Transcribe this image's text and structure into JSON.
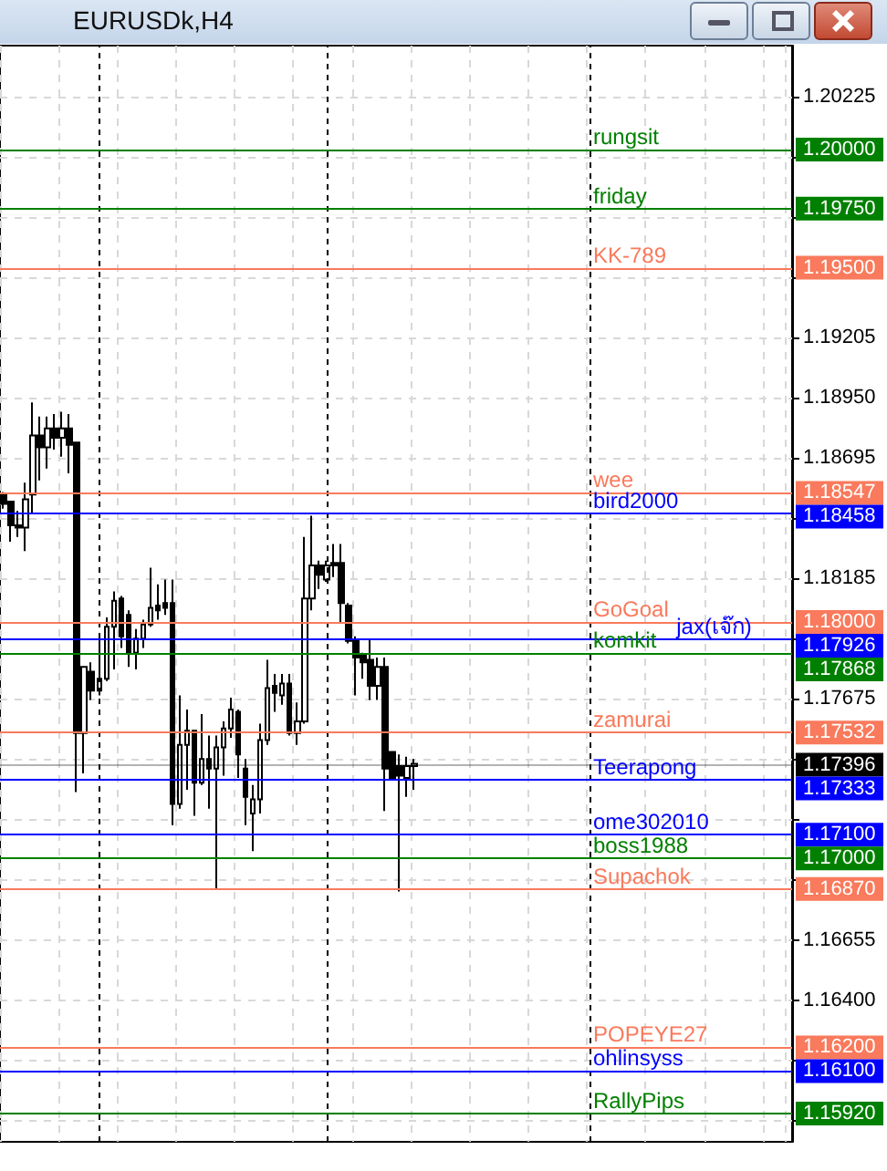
{
  "chart_data": {
    "type": "candlestick",
    "title": "EURUSDk,H4",
    "categories": [
      null,
      null,
      null,
      null,
      null,
      null,
      null,
      null,
      null,
      null,
      null,
      null,
      null,
      null,
      null,
      null,
      null,
      null,
      null,
      null,
      null,
      null,
      null,
      null,
      null,
      null,
      null,
      null,
      null,
      null,
      null,
      null,
      null,
      null,
      null,
      null,
      null,
      null,
      null,
      null,
      null,
      null,
      null,
      null,
      null,
      null,
      null,
      null,
      null,
      null,
      null,
      null,
      null,
      null,
      null,
      null,
      null,
      null,
      null,
      null,
      null,
      null,
      null,
      null,
      null,
      null,
      null,
      null,
      null,
      null,
      null,
      null,
      null,
      null,
      null,
      null,
      null,
      null,
      null,
      null,
      null,
      null,
      null,
      null,
      null,
      null,
      null,
      null,
      null,
      null,
      null,
      null,
      null,
      null,
      null,
      null,
      null,
      null,
      null,
      null,
      null,
      null,
      null,
      null,
      null,
      null,
      null,
      null
    ],
    "ohlc": [
      [
        1.1854,
        1.1855,
        1.1848,
        1.185
      ],
      [
        1.1851,
        1.1851,
        1.1834,
        1.1841
      ],
      [
        1.1841,
        1.1847,
        1.1836,
        1.184
      ],
      [
        1.184,
        1.1859,
        1.183,
        1.1852
      ],
      [
        1.1854,
        1.1893,
        1.1846,
        1.1879
      ],
      [
        1.1879,
        1.1887,
        1.186,
        1.1874
      ],
      [
        1.1874,
        1.1887,
        1.1865,
        1.1882
      ],
      [
        1.1882,
        1.1888,
        1.1873,
        1.1878
      ],
      [
        1.1878,
        1.1889,
        1.187,
        1.1882
      ],
      [
        1.1882,
        1.1888,
        1.1863,
        1.1875
      ],
      [
        1.1876,
        1.1876,
        1.1728,
        1.1753
      ],
      [
        1.1753,
        1.1781,
        1.1736,
        1.1781
      ],
      [
        1.1779,
        1.1783,
        1.1767,
        1.1771
      ],
      [
        1.1771,
        1.1794,
        1.1769,
        1.1776
      ],
      [
        1.1776,
        1.1802,
        1.1775,
        1.1798
      ],
      [
        1.1798,
        1.1813,
        1.178,
        1.1809
      ],
      [
        1.181,
        1.1811,
        1.1789,
        1.1794
      ],
      [
        1.1803,
        1.1805,
        1.1781,
        1.1787
      ],
      [
        1.1787,
        1.1797,
        1.178,
        1.1793
      ],
      [
        1.1793,
        1.1801,
        1.1789,
        1.1799
      ],
      [
        1.1799,
        1.1823,
        1.1798,
        1.1806
      ],
      [
        1.1807,
        1.1816,
        1.1801,
        1.1805
      ],
      [
        1.1808,
        1.1818,
        1.1803,
        1.1806
      ],
      [
        1.1808,
        1.1818,
        1.1714,
        1.1723
      ],
      [
        1.1723,
        1.1769,
        1.1721,
        1.1748
      ],
      [
        1.1748,
        1.1763,
        1.1729,
        1.1754
      ],
      [
        1.1754,
        1.1754,
        1.1718,
        1.1732
      ],
      [
        1.1732,
        1.1761,
        1.1731,
        1.1742
      ],
      [
        1.1742,
        1.1752,
        1.1721,
        1.1738
      ],
      [
        1.1738,
        1.1752,
        1.1687,
        1.1747
      ],
      [
        1.1747,
        1.1758,
        1.1735,
        1.1755
      ],
      [
        1.1755,
        1.1768,
        1.1751,
        1.1763
      ],
      [
        1.1762,
        1.1763,
        1.1734,
        1.1744
      ],
      [
        1.1738,
        1.1742,
        1.1714,
        1.1726
      ],
      [
        1.1719,
        1.1731,
        1.1703,
        1.1725
      ],
      [
        1.1725,
        1.1757,
        1.1719,
        1.175
      ],
      [
        1.175,
        1.1784,
        1.1748,
        1.1772
      ],
      [
        1.1773,
        1.1778,
        1.1762,
        1.177
      ],
      [
        1.1769,
        1.1778,
        1.1765,
        1.1774
      ],
      [
        1.1774,
        1.1778,
        1.1752,
        1.1753
      ],
      [
        1.1753,
        1.1766,
        1.1748,
        1.1758
      ],
      [
        1.1758,
        1.1836,
        1.1757,
        1.181
      ],
      [
        1.181,
        1.1845,
        1.1805,
        1.1824
      ],
      [
        1.1824,
        1.1826,
        1.1814,
        1.182
      ],
      [
        1.1818,
        1.1826,
        1.1817,
        1.1824
      ],
      [
        1.1825,
        1.1833,
        1.1819,
        1.1824
      ],
      [
        1.1825,
        1.1833,
        1.18,
        1.1808
      ],
      [
        1.1807,
        1.1808,
        1.1791,
        1.1792
      ],
      [
        1.1792,
        1.1794,
        1.1769,
        1.1785
      ],
      [
        1.1786,
        1.1787,
        1.1776,
        1.1783
      ],
      [
        1.1784,
        1.1793,
        1.1767,
        1.1773
      ],
      [
        1.1773,
        1.1785,
        1.1767,
        1.1781
      ],
      [
        1.1781,
        1.1785,
        1.172,
        1.1738
      ],
      [
        1.1745,
        1.1745,
        1.1734,
        1.1734
      ],
      [
        1.1739,
        1.1744,
        1.1686,
        1.1735
      ],
      [
        1.1734,
        1.1743,
        1.1726,
        1.1739
      ],
      [
        1.1739,
        1.1742,
        1.1729,
        1.174
      ],
      null,
      null,
      null,
      null,
      null,
      null,
      null,
      null,
      null,
      null,
      null,
      null,
      null,
      null,
      null,
      null,
      null,
      null,
      null,
      null,
      null,
      null,
      null,
      null,
      null,
      null,
      null,
      null,
      null,
      null,
      null,
      null,
      null,
      null,
      null,
      null,
      null,
      null,
      null,
      null,
      null,
      null,
      null,
      null,
      null,
      null,
      null,
      null,
      null,
      null,
      null
    ],
    "ylim": [
      1.158,
      1.2044
    ],
    "yticks": [
      {
        "value": 1.1589,
        "label": null
      },
      {
        "value": 1.16145,
        "label": null
      },
      {
        "value": 1.164,
        "label": "1.16400"
      },
      {
        "value": 1.16655,
        "label": "1.16655"
      },
      {
        "value": 1.1691,
        "label": null
      },
      {
        "value": 1.17165,
        "label": null
      },
      {
        "value": 1.1742,
        "label": null
      },
      {
        "value": 1.17675,
        "label": "1.17675"
      },
      {
        "value": 1.1793,
        "label": null
      },
      {
        "value": 1.18185,
        "label": "1.18185"
      },
      {
        "value": 1.1844,
        "label": null
      },
      {
        "value": 1.18695,
        "label": "1.18695"
      },
      {
        "value": 1.1895,
        "label": "1.18950"
      },
      {
        "value": 1.19205,
        "label": "1.19205"
      },
      {
        "value": 1.1946,
        "label": null
      },
      {
        "value": 1.19715,
        "label": null
      },
      {
        "value": 1.1997,
        "label": null
      },
      {
        "value": 1.20225,
        "label": "1.20225"
      }
    ],
    "ref_lines": [
      {
        "axis": "y",
        "value": 1.2,
        "label": "rungsit",
        "color": "#008000"
      },
      {
        "axis": "y",
        "value": 1.1975,
        "label": "friday",
        "color": "#008000"
      },
      {
        "axis": "y",
        "value": 1.195,
        "label": "KK-789",
        "color": "#f97a5c"
      },
      {
        "axis": "y",
        "value": 1.18547,
        "label": "wee",
        "color": "#f97a5c"
      },
      {
        "axis": "y",
        "value": 1.18458,
        "label": "bird2000",
        "color": "#0000ff"
      },
      {
        "axis": "y",
        "value": 1.18,
        "label": "GoGoal",
        "color": "#f97a5c"
      },
      {
        "axis": "y",
        "value": 1.17926,
        "label": "jax(เจ๊ก)",
        "color": "#0000ff"
      },
      {
        "axis": "y",
        "value": 1.17868,
        "label": "komkit",
        "color": "#008000"
      },
      {
        "axis": "y",
        "value": 1.17532,
        "label": "zamurai",
        "color": "#f97a5c"
      },
      {
        "axis": "y",
        "value": 1.17396,
        "color": "#000000"
      },
      {
        "axis": "y",
        "value": 1.17333,
        "label": "Teerapong",
        "color": "#0000ff"
      },
      {
        "axis": "y",
        "value": 1.171,
        "label": "ome302010",
        "color": "#0000ff"
      },
      {
        "axis": "y",
        "value": 1.17,
        "label": "boss1988",
        "color": "#008000"
      },
      {
        "axis": "y",
        "value": 1.1687,
        "label": "Supachok",
        "color": "#f97a5c"
      },
      {
        "axis": "y",
        "value": 1.162,
        "label": "POPEYE27",
        "color": "#f97a5c"
      },
      {
        "axis": "y",
        "value": 1.161,
        "label": "ohlinsyss",
        "color": "#0000ff"
      },
      {
        "axis": "y",
        "value": 1.1592,
        "label": "RallyPips",
        "color": "#008000"
      }
    ],
    "annotations": [
      "1.20000",
      "1.19750",
      "1.19500",
      "1.18547",
      "1.18458",
      "1.18000",
      "1.17926",
      "1.17868",
      "1.17532",
      "1.17396",
      "1.17333",
      "1.17100",
      "1.17000",
      "1.16870",
      "1.16200",
      "1.16100",
      "1.15920"
    ],
    "grid": true,
    "tick_labels": "y"
  }
}
